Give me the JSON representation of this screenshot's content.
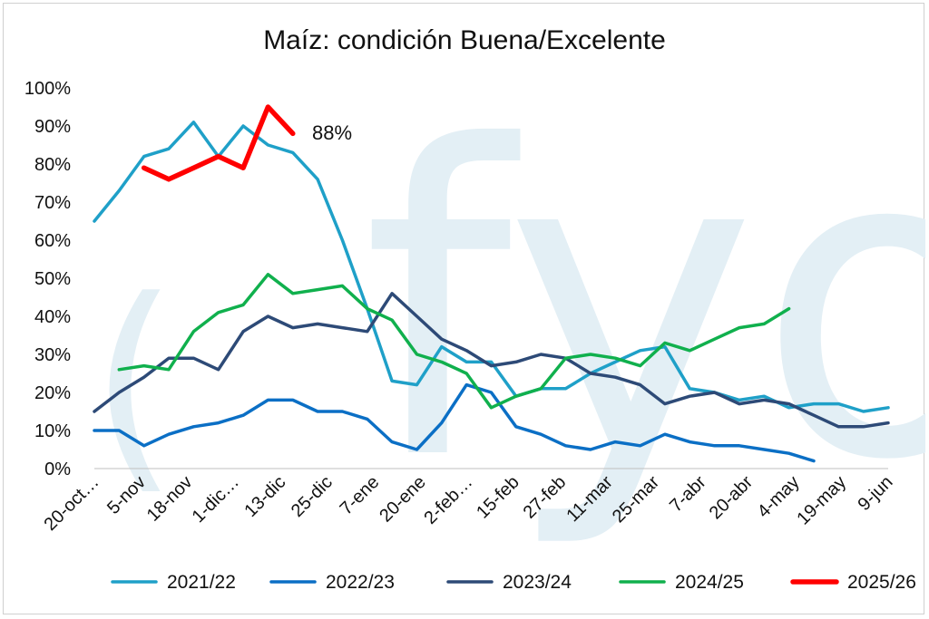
{
  "chart_data": {
    "type": "line",
    "title": "Maíz: condición Buena/Excelente",
    "watermark": "fyo",
    "x_tick_labels": [
      "20-oct…",
      "5-nov",
      "18-nov",
      "1-dic…",
      "13-dic",
      "25-dic",
      "7-ene",
      "20-ene",
      "2-feb…",
      "15-feb",
      "27-feb",
      "11-mar",
      "25-mar",
      "7-abr",
      "20-abr",
      "4-may",
      "19-may",
      "9-jun"
    ],
    "y_tick_labels": [
      "0%",
      "10%",
      "20%",
      "30%",
      "40%",
      "50%",
      "60%",
      "70%",
      "80%",
      "90%",
      "100%"
    ],
    "ylim": [
      0,
      100
    ],
    "grid": false,
    "legend_position": "bottom",
    "annotation": "88%",
    "series": [
      {
        "name": "2021/22",
        "color": "#1fa0c8",
        "width": 3.5,
        "values": [
          65,
          73,
          82,
          84,
          91,
          82,
          90,
          85,
          83,
          76,
          60,
          42,
          23,
          22,
          32,
          28,
          28,
          19,
          21,
          21,
          25,
          28,
          31,
          32,
          21,
          20,
          18,
          19,
          16,
          17,
          17,
          15,
          16
        ]
      },
      {
        "name": "2022/23",
        "color": "#0b6fc5",
        "width": 3.5,
        "values": [
          10,
          10,
          6,
          9,
          11,
          12,
          14,
          18,
          18,
          15,
          15,
          13,
          7,
          5,
          12,
          22,
          20,
          11,
          9,
          6,
          5,
          7,
          6,
          9,
          7,
          6,
          6,
          5,
          4,
          2,
          null,
          null,
          null
        ]
      },
      {
        "name": "2023/24",
        "color": "#2d4a77",
        "width": 3.5,
        "values": [
          15,
          20,
          24,
          29,
          29,
          26,
          36,
          40,
          37,
          38,
          37,
          36,
          46,
          40,
          34,
          31,
          27,
          28,
          30,
          29,
          25,
          24,
          22,
          17,
          19,
          20,
          17,
          18,
          17,
          14,
          11,
          11,
          12
        ]
      },
      {
        "name": "2024/25",
        "color": "#10b04d",
        "width": 3.5,
        "values": [
          null,
          26,
          27,
          26,
          36,
          41,
          43,
          51,
          46,
          47,
          48,
          42,
          39,
          30,
          28,
          25,
          16,
          19,
          21,
          29,
          30,
          29,
          27,
          33,
          31,
          34,
          37,
          38,
          42,
          null,
          null,
          null,
          null
        ]
      },
      {
        "name": "2025/26",
        "color": "#ff0000",
        "width": 5.5,
        "values": [
          null,
          null,
          79,
          76,
          79,
          82,
          79,
          95,
          88,
          null,
          null,
          null,
          null,
          null,
          null,
          null,
          null,
          null,
          null,
          null,
          null,
          null,
          null,
          null,
          null,
          null,
          null,
          null,
          null,
          null,
          null,
          null,
          null
        ]
      }
    ]
  }
}
